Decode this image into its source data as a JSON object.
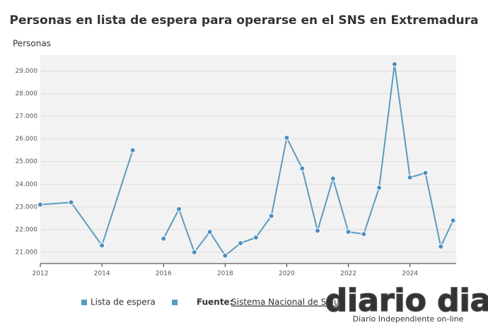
{
  "chart_data": {
    "type": "line",
    "title": "Personas en lista de espera para operarse en el SNS en Extremadura",
    "y_label": "Personas",
    "x": [
      2012,
      2013,
      2014,
      2015,
      2015.5,
      2016,
      2016.5,
      2017,
      2017.5,
      2018,
      2018.5,
      2019,
      2019.5,
      2020,
      2020.5,
      2021,
      2021.5,
      2022,
      2022.5,
      2023,
      2023.5,
      2024,
      2024.5,
      2025,
      2025.4
    ],
    "series": [
      {
        "name": "Lista de espera",
        "color": "#5b9bc0",
        "values": [
          23100,
          23200,
          21300,
          25500,
          null,
          21600,
          22900,
          21000,
          21900,
          20850,
          21400,
          21650,
          22600,
          26050,
          24700,
          21950,
          24250,
          21900,
          21800,
          23850,
          29300,
          24300,
          24500,
          21250,
          22400
        ]
      }
    ],
    "xlim": [
      2012,
      2025.5
    ],
    "xticks": [
      2012,
      2014,
      2016,
      2018,
      2020,
      2022,
      2024
    ],
    "ylim": [
      20500,
      29700
    ],
    "yticks": [
      {
        "value": 21000,
        "label": "21.000"
      },
      {
        "value": 22000,
        "label": "22.000"
      },
      {
        "value": 23000,
        "label": "23.000"
      },
      {
        "value": 24000,
        "label": "24.000"
      },
      {
        "value": 25000,
        "label": "25.000"
      },
      {
        "value": 26000,
        "label": "26.000"
      },
      {
        "value": 27000,
        "label": "27.000"
      },
      {
        "value": 28000,
        "label": "28.000"
      },
      {
        "value": 29000,
        "label": "29.000"
      }
    ],
    "grid": true,
    "source_label": "Fuente:",
    "source": "Sistema Nacional de Salud"
  },
  "watermark": {
    "brand": "diario dia",
    "tagline": "Diario Independiente on-line"
  }
}
